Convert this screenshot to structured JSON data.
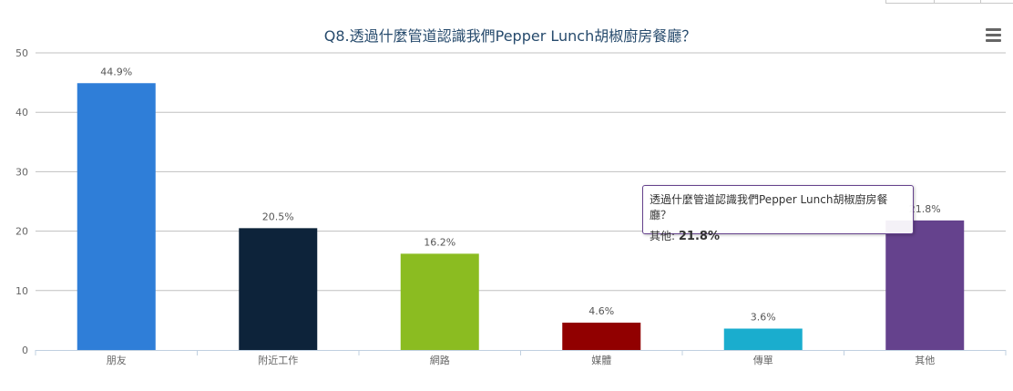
{
  "chart_data": {
    "type": "bar",
    "title": "Q8.透過什麼管道認識我們Pepper Lunch胡椒廚房餐廳？",
    "categories": [
      "朋友",
      "附近工作",
      "網路",
      "媒體",
      "傳單",
      "其他"
    ],
    "values": [
      44.9,
      20.5,
      16.2,
      4.6,
      3.6,
      21.8
    ],
    "data_labels": [
      "44.9%",
      "20.5%",
      "16.2%",
      "4.6%",
      "3.6%",
      "21.8%"
    ],
    "colors": [
      "#2f7ed8",
      "#0d233a",
      "#8bbc21",
      "#910000",
      "#1aadce",
      "#65428d"
    ],
    "ylim": [
      0,
      50
    ],
    "yticks": [
      "0",
      "10",
      "20",
      "30",
      "40",
      "50"
    ],
    "grid": true,
    "legend": "none"
  },
  "tooltip": {
    "title": "透過什麼管道認識我們Pepper Lunch胡椒廚房餐廳？",
    "series": "其他",
    "value": "21.8%"
  },
  "menu": {
    "icon": "hamburger-menu-icon"
  }
}
